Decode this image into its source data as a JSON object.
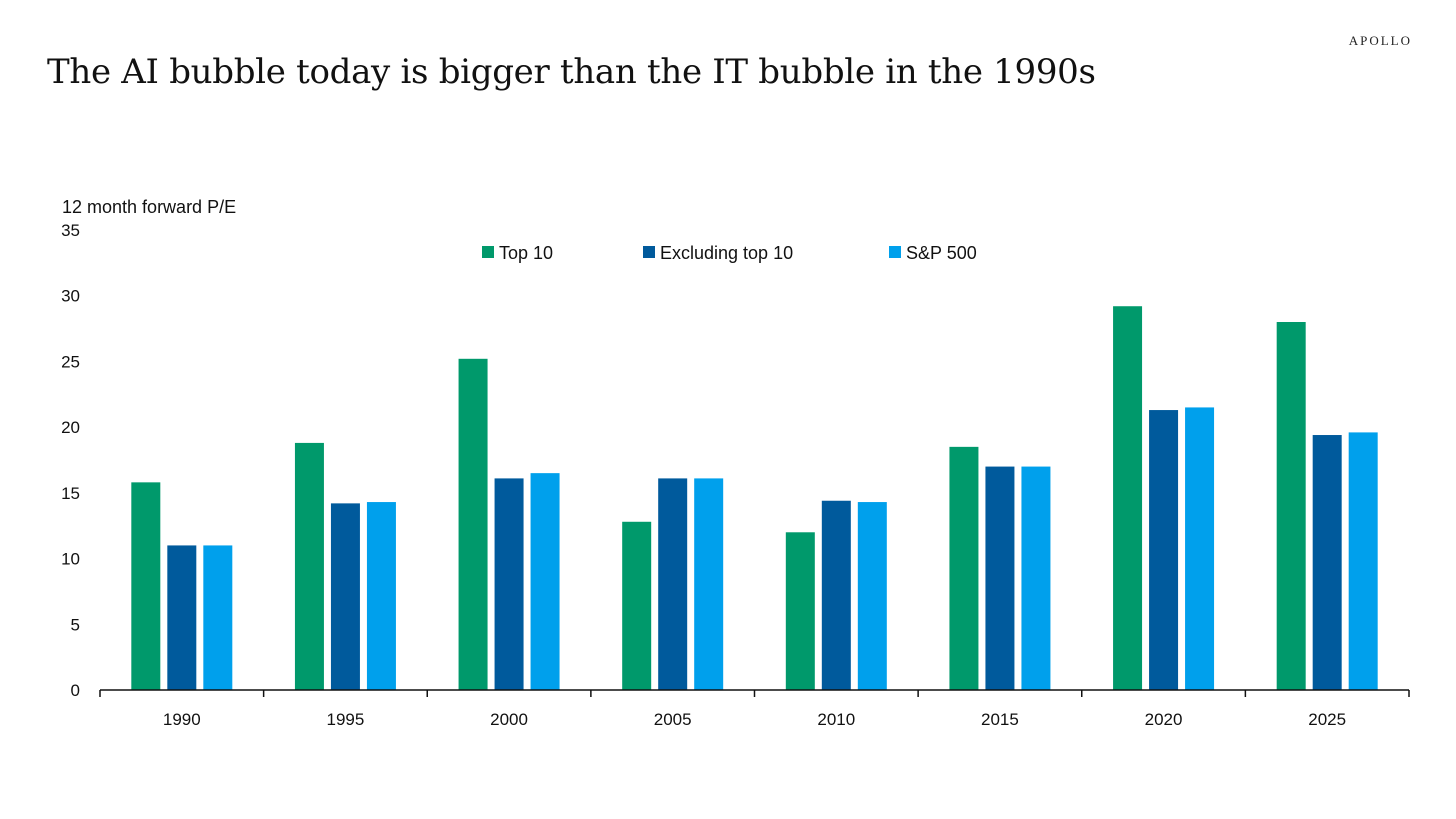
{
  "header": {
    "title": "The AI bubble today is bigger than the IT bubble in the 1990s",
    "brand": "APOLLO"
  },
  "colors": {
    "top10": "#00996B",
    "excluding": "#005A9C",
    "sp500": "#00A0EC",
    "axis": "#111111",
    "text": "#111111"
  },
  "chart_data": {
    "type": "bar",
    "title": "The AI bubble today is bigger than the IT bubble in the 1990s",
    "ylabel": "12 month forward P/E",
    "xlabel": "",
    "ylim": [
      0,
      35
    ],
    "yticks": [
      "0",
      "5",
      "10",
      "15",
      "20",
      "25",
      "30",
      "35"
    ],
    "grid": false,
    "legend": "top-center",
    "categories": [
      "1990",
      "1995",
      "2000",
      "2005",
      "2010",
      "2015",
      "2020",
      "2025"
    ],
    "series": [
      {
        "name": "Top 10",
        "color": "#00996B",
        "values": [
          15.8,
          18.8,
          25.2,
          12.8,
          12.0,
          18.5,
          29.2,
          28.0
        ]
      },
      {
        "name": "Excluding top 10",
        "color": "#005A9C",
        "values": [
          11.0,
          14.2,
          16.1,
          16.1,
          14.4,
          17.0,
          21.3,
          19.4
        ]
      },
      {
        "name": "S&P 500",
        "color": "#00A0EC",
        "values": [
          11.0,
          14.3,
          16.5,
          16.1,
          14.3,
          17.0,
          21.5,
          19.6
        ]
      }
    ]
  }
}
